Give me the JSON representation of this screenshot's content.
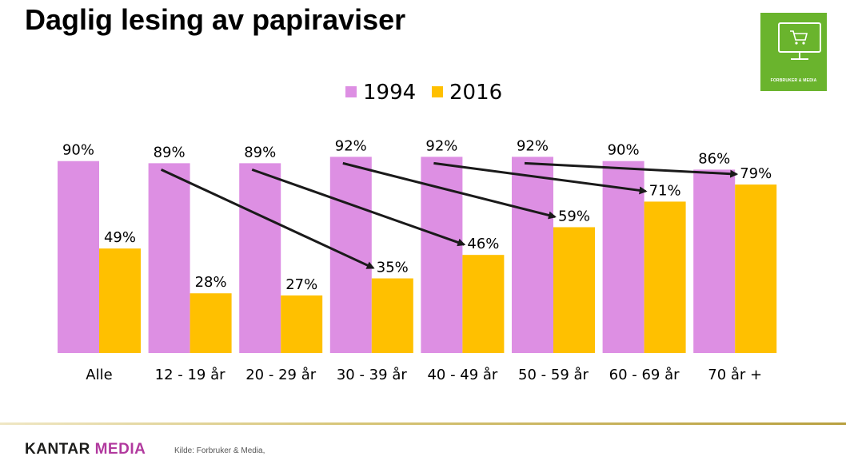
{
  "title": "Daglig lesing av papiraviser",
  "badge": {
    "label": "FORBRUKER & MEDIA",
    "icon": "shopping-cart-monitor-icon",
    "color": "#6ab42d"
  },
  "footer": {
    "logo_part1": "KANTAR",
    "logo_part2": " MEDIA",
    "source": "Kilde: Forbruker & Media,"
  },
  "chart_data": {
    "type": "bar",
    "categories": [
      "Alle",
      "12 - 19 år",
      "20 - 29 år",
      "30 - 39 år",
      "40 - 49 år",
      "50 - 59 år",
      "60 - 69 år",
      "70 år +"
    ],
    "series": [
      {
        "name": "1994",
        "color": "#dd8fe3",
        "values": [
          90,
          89,
          89,
          92,
          92,
          92,
          90,
          86
        ],
        "labels": [
          "90%",
          "89%",
          "89%",
          "92%",
          "92%",
          "92%",
          "90%",
          "86%"
        ]
      },
      {
        "name": "2016",
        "color": "#ffc000",
        "values": [
          49,
          28,
          27,
          35,
          46,
          59,
          71,
          79
        ],
        "labels": [
          "49%",
          "28%",
          "27%",
          "35%",
          "46%",
          "59%",
          "71%",
          "79%"
        ]
      }
    ],
    "ylim": [
      0,
      100
    ],
    "grid": false,
    "legend_position": "top-center",
    "annotations": "cohort arrows from each 1994 age group to the 2016 bar of the age group 22 years older",
    "cohort_arrows": [
      {
        "from_category": 1,
        "to_category": 3
      },
      {
        "from_category": 2,
        "to_category": 4
      },
      {
        "from_category": 3,
        "to_category": 5
      },
      {
        "from_category": 4,
        "to_category": 6
      },
      {
        "from_category": 5,
        "to_category": 7
      }
    ]
  }
}
